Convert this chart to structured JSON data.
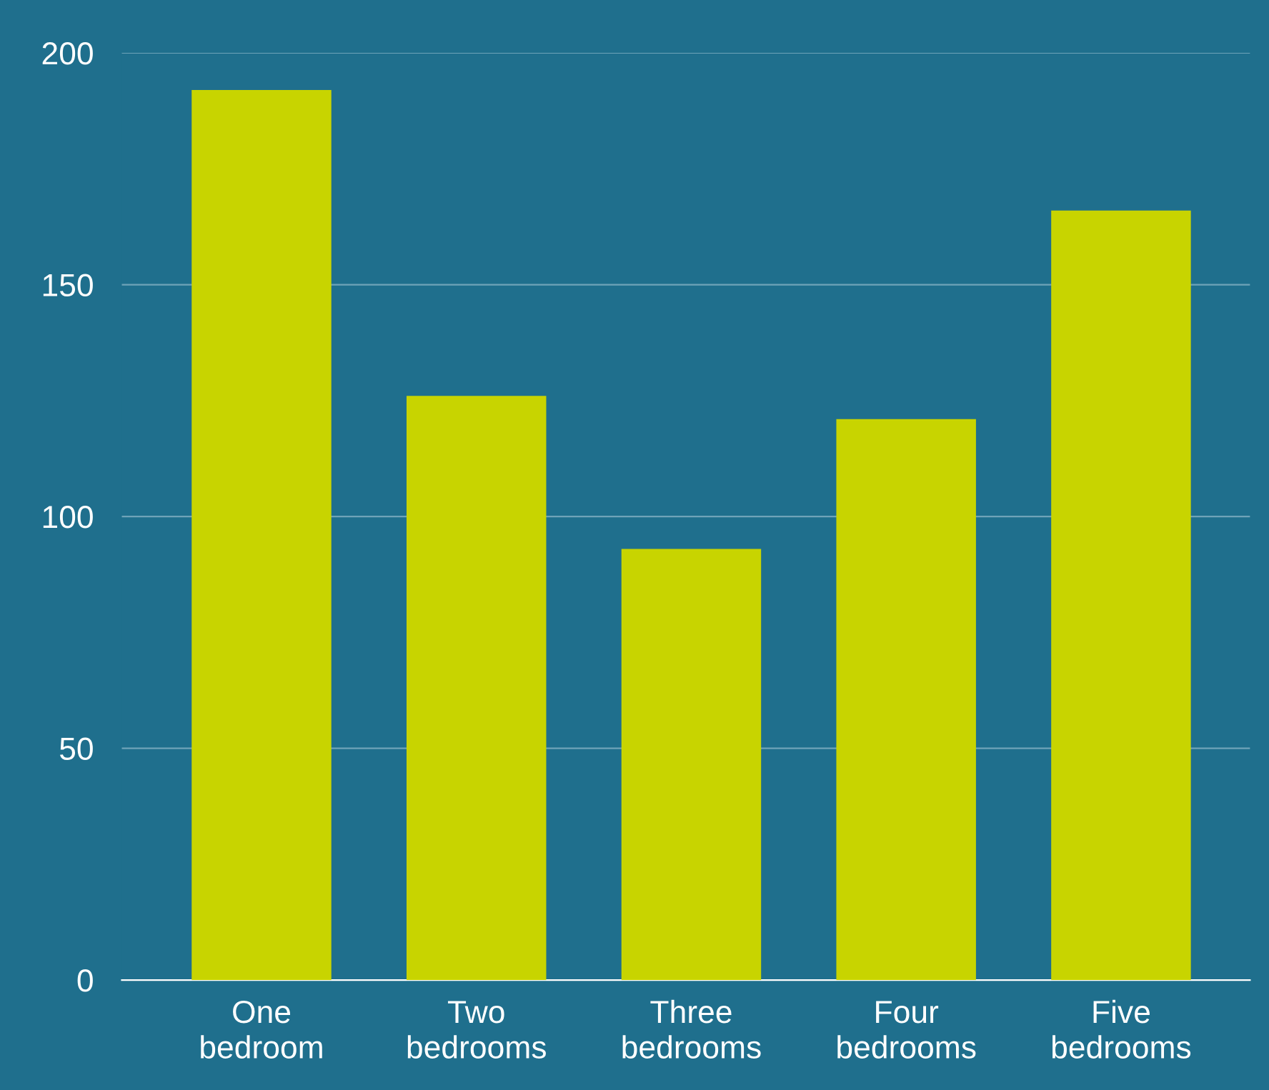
{
  "chart_data": {
    "type": "bar",
    "categories": [
      "One bedroom",
      "Two bedrooms",
      "Three bedrooms",
      "Four bedrooms",
      "Five bedrooms"
    ],
    "values": [
      192,
      126,
      93,
      121,
      166
    ],
    "color": "#c8d400",
    "ylim": [
      0,
      200
    ],
    "yticks": [
      0,
      50,
      100,
      150,
      200
    ],
    "grid": "y"
  }
}
